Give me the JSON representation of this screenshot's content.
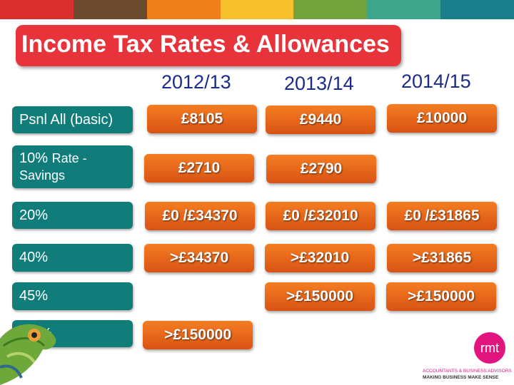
{
  "title": "Income Tax Rates & Allowances",
  "years": [
    "2012/13",
    "2013/14",
    "2014/15"
  ],
  "rows": {
    "basic": {
      "label": "Psnl All (basic)",
      "values": [
        "£8105",
        "£9440",
        "£10000"
      ]
    },
    "savings": {
      "label_pct": "10%",
      "label_rest": "Rate - Savings",
      "values": [
        "£2710",
        "£2790"
      ]
    },
    "r20": {
      "label": "20%",
      "values": [
        "£0 /£34370",
        "£0 /£32010",
        "£0 /£31865"
      ]
    },
    "r40": {
      "label": "40%",
      "values": [
        ">£34370",
        ">£32010",
        ">£31865"
      ]
    },
    "r45": {
      "label": "45%",
      "values": [
        ">£150000",
        ">£150000"
      ]
    },
    "r50": {
      "label": "50%",
      "values": [
        ">£150000"
      ]
    }
  },
  "logo": {
    "text": "rmt",
    "tagline1": "ACCOUNTANTS & BUSINESS ADVISORS",
    "tagline2": "MAKING BUSINESS MAKE SENSE"
  },
  "colors": {
    "stripe": [
      "#d9302d",
      "#6b4a2f",
      "#ef7f1a",
      "#f6c12d",
      "#73a33c",
      "#3da58a",
      "#1a7f8a"
    ],
    "title_bg": "#e8333b",
    "label_bg": "#107d7a",
    "value_bg": "#e5631a",
    "year_text": "#1a2b8a",
    "logo": "#e2157e"
  }
}
